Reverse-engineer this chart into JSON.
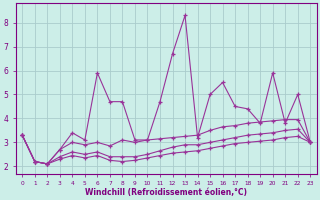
{
  "xlabel": "Windchill (Refroidissement éolien,°C)",
  "bg_color": "#cceee8",
  "grid_color": "#aacccc",
  "line_color": "#993399",
  "xlim_min": -0.5,
  "xlim_max": 23.5,
  "ylim_min": 1.7,
  "ylim_max": 8.8,
  "ytick_vals": [
    2,
    3,
    4,
    5,
    6,
    7,
    8
  ],
  "series1_x": [
    0,
    1,
    2,
    3,
    4,
    5,
    6,
    7,
    8,
    9,
    10,
    11,
    12,
    13,
    14,
    15,
    16,
    17,
    18,
    19,
    20,
    21,
    22,
    23
  ],
  "series1_y": [
    3.3,
    2.2,
    2.1,
    2.7,
    3.4,
    3.1,
    5.9,
    4.7,
    4.7,
    3.1,
    3.1,
    4.7,
    6.7,
    8.3,
    3.2,
    5.0,
    5.5,
    4.5,
    4.4,
    3.8,
    5.9,
    3.8,
    5.0,
    3.0
  ],
  "series2_x": [
    0,
    1,
    2,
    3,
    4,
    5,
    6,
    7,
    8,
    9,
    10,
    11,
    12,
    13,
    14,
    15,
    16,
    17,
    18,
    19,
    20,
    21,
    22,
    23
  ],
  "series2_y": [
    3.3,
    2.2,
    2.1,
    2.7,
    3.0,
    2.9,
    3.0,
    2.85,
    3.1,
    3.0,
    3.1,
    3.15,
    3.2,
    3.25,
    3.3,
    3.5,
    3.65,
    3.7,
    3.8,
    3.85,
    3.9,
    3.95,
    3.95,
    3.0
  ],
  "series3_x": [
    0,
    1,
    2,
    3,
    4,
    5,
    6,
    7,
    8,
    9,
    10,
    11,
    12,
    13,
    14,
    15,
    16,
    17,
    18,
    19,
    20,
    21,
    22,
    23
  ],
  "series3_y": [
    3.3,
    2.2,
    2.1,
    2.4,
    2.6,
    2.5,
    2.6,
    2.4,
    2.4,
    2.4,
    2.5,
    2.65,
    2.8,
    2.9,
    2.9,
    3.0,
    3.1,
    3.2,
    3.3,
    3.35,
    3.4,
    3.5,
    3.55,
    3.0
  ],
  "series4_x": [
    0,
    1,
    2,
    3,
    4,
    5,
    6,
    7,
    8,
    9,
    10,
    11,
    12,
    13,
    14,
    15,
    16,
    17,
    18,
    19,
    20,
    21,
    22,
    23
  ],
  "series4_y": [
    3.3,
    2.2,
    2.1,
    2.3,
    2.45,
    2.35,
    2.45,
    2.25,
    2.2,
    2.25,
    2.35,
    2.45,
    2.55,
    2.6,
    2.65,
    2.75,
    2.85,
    2.95,
    3.0,
    3.05,
    3.1,
    3.2,
    3.25,
    3.0
  ]
}
